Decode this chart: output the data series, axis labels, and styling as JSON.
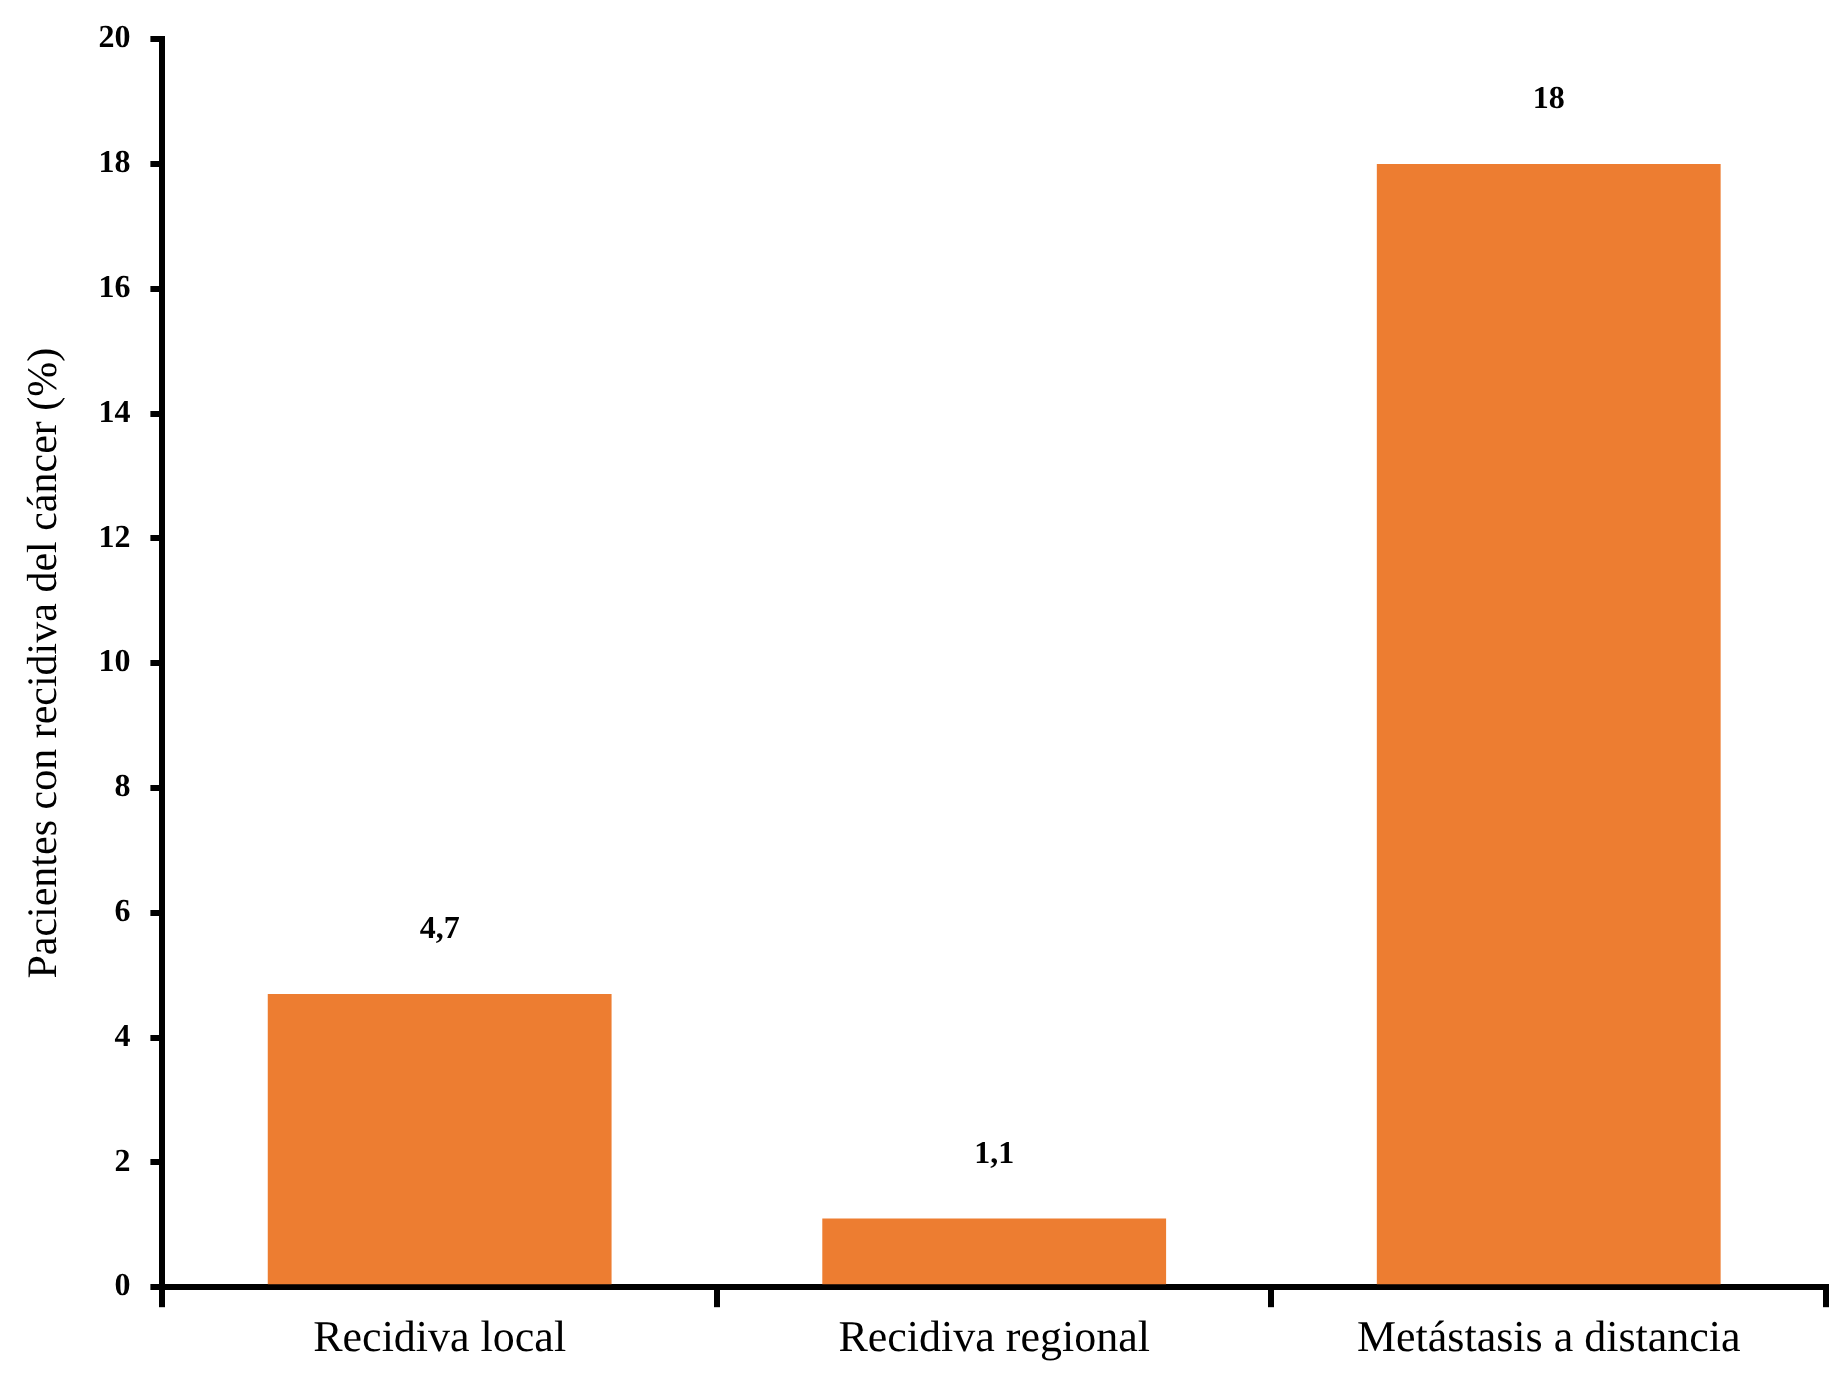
{
  "chart_data": {
    "type": "bar",
    "ylabel": "Pacientes con recidiva del cáncer (%)",
    "categories": [
      "Recidiva local",
      "Recidiva regional",
      "Metástasis a distancia"
    ],
    "values": [
      4.7,
      1.1,
      18
    ],
    "value_labels": [
      "4,7",
      "1,1",
      "18"
    ],
    "color": "#ed7d31",
    "ylim": [
      0,
      20
    ],
    "yticks": [
      0,
      2,
      4,
      6,
      8,
      10,
      12,
      14,
      16,
      18,
      20
    ]
  }
}
